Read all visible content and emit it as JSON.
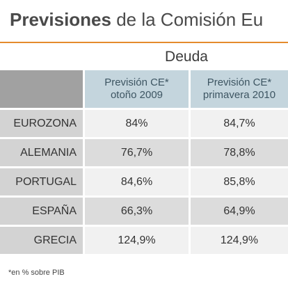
{
  "title": {
    "bold": "Previsiones",
    "rest": " de la Comisión Eu"
  },
  "chart_data": {
    "type": "table",
    "group_header": "Deuda",
    "columns": [
      {
        "line1": "Previsión CE*",
        "line2": "otoño 2009"
      },
      {
        "line1": "Previsión CE*",
        "line2": "primavera 2010"
      }
    ],
    "rows": [
      {
        "label": "EUROZONA",
        "values": [
          "84%",
          "84,7%"
        ]
      },
      {
        "label": "ALEMANIA",
        "values": [
          "76,7%",
          "78,8%"
        ]
      },
      {
        "label": "PORTUGAL",
        "values": [
          "84,6%",
          "85,8%"
        ]
      },
      {
        "label": "ESPAÑA",
        "values": [
          "66,3%",
          "64,9%"
        ]
      },
      {
        "label": "GRECIA",
        "values": [
          "124,9%",
          "124,9%"
        ]
      }
    ],
    "footnote": "*en % sobre PIB"
  },
  "colors": {
    "accent_line": "#e58b2c",
    "header_fill": "#c4d5dd",
    "corner_fill": "#a1a1a1",
    "row_fill_odd": "#f1f1f1",
    "row_fill_even": "#dcdcdc",
    "label_fill": "#d3d3d3"
  }
}
